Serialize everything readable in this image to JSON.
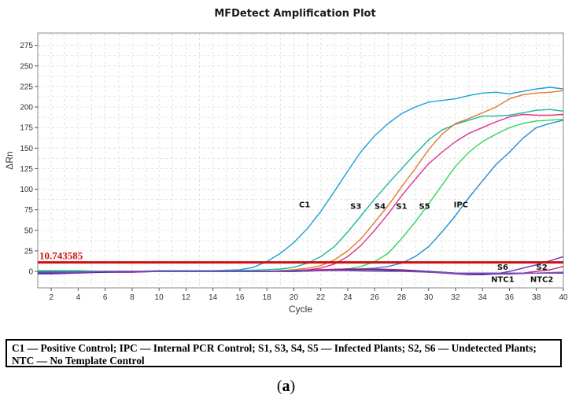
{
  "chart_data": {
    "type": "line",
    "title": "MFDetect Amplification Plot",
    "xlabel": "Cycle",
    "ylabel": "ΔRn",
    "xlim": [
      1,
      40
    ],
    "ylim": [
      -20,
      290
    ],
    "xticks": [
      2,
      4,
      6,
      8,
      10,
      12,
      14,
      16,
      18,
      20,
      22,
      24,
      26,
      28,
      30,
      32,
      34,
      36,
      38,
      40
    ],
    "yticks": [
      0,
      25,
      50,
      75,
      100,
      125,
      150,
      175,
      200,
      225,
      250,
      275
    ],
    "grid": true,
    "threshold": {
      "label": "10.743585",
      "value": 11,
      "color": "#cc1111"
    },
    "series": [
      {
        "name": "C1",
        "color": "#1aa0d8",
        "x": [
          1,
          2,
          4,
          6,
          8,
          10,
          12,
          14,
          16,
          17,
          18,
          19,
          20,
          21,
          22,
          23,
          24,
          25,
          26,
          27,
          28,
          29,
          30,
          31,
          32,
          33,
          34,
          35,
          36,
          37,
          38,
          39,
          40
        ],
        "y": [
          0,
          0,
          0,
          0,
          0,
          1,
          1,
          1,
          2,
          5,
          12,
          22,
          35,
          52,
          73,
          97,
          122,
          146,
          165,
          180,
          192,
          200,
          206,
          208,
          210,
          214,
          217,
          218,
          216,
          219,
          222,
          224,
          222
        ]
      },
      {
        "name": "S3",
        "color": "#1ab89a",
        "x": [
          1,
          2,
          4,
          6,
          8,
          10,
          12,
          14,
          16,
          18,
          19,
          20,
          21,
          22,
          23,
          24,
          25,
          26,
          27,
          28,
          29,
          30,
          31,
          32,
          33,
          34,
          35,
          36,
          37,
          38,
          39,
          40
        ],
        "y": [
          -1,
          -1,
          0,
          0,
          0,
          0,
          0,
          0,
          1,
          2,
          3,
          5,
          10,
          18,
          30,
          48,
          68,
          88,
          107,
          125,
          143,
          160,
          172,
          179,
          184,
          189,
          189,
          190,
          193,
          196,
          197,
          195
        ]
      },
      {
        "name": "S4",
        "color": "#e07a2a",
        "x": [
          1,
          2,
          4,
          6,
          8,
          10,
          12,
          14,
          16,
          18,
          20,
          21,
          22,
          23,
          24,
          25,
          26,
          27,
          28,
          29,
          30,
          31,
          32,
          33,
          34,
          35,
          36,
          37,
          38,
          39,
          40
        ],
        "y": [
          0,
          0,
          0,
          0,
          0,
          0,
          0,
          0,
          0,
          0,
          2,
          4,
          7,
          14,
          25,
          40,
          60,
          80,
          103,
          125,
          148,
          167,
          180,
          186,
          193,
          200,
          210,
          215,
          217,
          218,
          220
        ]
      },
      {
        "name": "S1",
        "color": "#e0308a",
        "x": [
          1,
          2,
          4,
          6,
          8,
          10,
          12,
          14,
          16,
          18,
          20,
          21,
          22,
          23,
          24,
          25,
          26,
          27,
          28,
          29,
          30,
          31,
          32,
          33,
          34,
          35,
          36,
          37,
          38,
          39,
          40
        ],
        "y": [
          -2,
          -2,
          -1,
          -1,
          -1,
          0,
          0,
          0,
          0,
          0,
          1,
          2,
          4,
          9,
          18,
          32,
          50,
          70,
          92,
          112,
          131,
          145,
          158,
          168,
          175,
          182,
          188,
          191,
          190,
          190,
          191
        ]
      },
      {
        "name": "S5",
        "color": "#2ed65a",
        "x": [
          1,
          2,
          4,
          6,
          8,
          10,
          12,
          14,
          16,
          18,
          20,
          22,
          24,
          25,
          26,
          27,
          28,
          29,
          30,
          31,
          32,
          33,
          34,
          35,
          36,
          37,
          38,
          39,
          40
        ],
        "y": [
          1,
          1,
          1,
          0,
          0,
          0,
          0,
          0,
          0,
          0,
          0,
          1,
          3,
          6,
          12,
          22,
          40,
          60,
          82,
          105,
          128,
          145,
          158,
          167,
          175,
          180,
          183,
          184,
          185
        ]
      },
      {
        "name": "IPC",
        "color": "#1f8ed0",
        "x": [
          1,
          2,
          4,
          6,
          8,
          10,
          12,
          14,
          16,
          18,
          20,
          22,
          24,
          26,
          27,
          28,
          29,
          30,
          31,
          32,
          33,
          34,
          35,
          36,
          37,
          38,
          39,
          40
        ],
        "y": [
          0,
          0,
          0,
          0,
          0,
          0,
          0,
          0,
          0,
          0,
          0,
          1,
          2,
          4,
          6,
          10,
          18,
          30,
          48,
          68,
          90,
          110,
          130,
          145,
          162,
          175,
          180,
          184
        ]
      },
      {
        "name": "S6",
        "color": "#7030b8",
        "x": [
          1,
          2,
          4,
          6,
          8,
          10,
          12,
          14,
          16,
          18,
          20,
          22,
          24,
          26,
          28,
          30,
          32,
          33,
          34,
          35,
          36,
          37,
          38,
          39,
          40
        ],
        "y": [
          -3,
          -3,
          -2,
          -1,
          -1,
          0,
          0,
          0,
          0,
          0,
          1,
          2,
          3,
          2,
          1,
          -1,
          -3,
          -4,
          -4,
          -3,
          0,
          4,
          8,
          13,
          18
        ]
      },
      {
        "name": "S2",
        "color": "#c0207a",
        "x": [
          1,
          2,
          4,
          6,
          8,
          10,
          12,
          14,
          16,
          18,
          20,
          22,
          24,
          26,
          28,
          30,
          32,
          34,
          35,
          36,
          37,
          38,
          39,
          40
        ],
        "y": [
          -1,
          -1,
          -1,
          0,
          0,
          0,
          0,
          0,
          0,
          0,
          1,
          2,
          3,
          3,
          2,
          0,
          -2,
          -3,
          -3,
          -3,
          -2,
          0,
          2,
          6
        ]
      },
      {
        "name": "NTC1",
        "color": "#2a3a9a",
        "x": [
          1,
          2,
          4,
          6,
          8,
          10,
          12,
          14,
          16,
          18,
          20,
          22,
          24,
          26,
          28,
          30,
          32,
          34,
          36,
          38,
          40
        ],
        "y": [
          -2,
          -2,
          -1,
          -1,
          0,
          0,
          0,
          0,
          0,
          0,
          0,
          1,
          2,
          2,
          1,
          0,
          -2,
          -3,
          -3,
          -2,
          -2
        ]
      },
      {
        "name": "NTC2",
        "color": "#8a4ab8",
        "x": [
          1,
          2,
          4,
          6,
          8,
          10,
          12,
          14,
          16,
          18,
          20,
          22,
          24,
          26,
          28,
          30,
          32,
          34,
          36,
          38,
          40
        ],
        "y": [
          -1,
          -1,
          -1,
          0,
          0,
          0,
          0,
          0,
          0,
          0,
          1,
          1,
          1,
          0,
          0,
          -1,
          -2,
          -2,
          -2,
          -2,
          -1
        ]
      }
    ],
    "annotations": [
      {
        "text": "C1",
        "x": 20.8,
        "y": 78
      },
      {
        "text": "S3",
        "x": 24.6,
        "y": 76
      },
      {
        "text": "S4",
        "x": 26.4,
        "y": 76
      },
      {
        "text": "S1",
        "x": 28.0,
        "y": 76
      },
      {
        "text": "S5",
        "x": 29.7,
        "y": 76
      },
      {
        "text": "IPC",
        "x": 32.4,
        "y": 78
      },
      {
        "text": "S6",
        "x": 35.5,
        "y": 2
      },
      {
        "text": "S2",
        "x": 38.4,
        "y": 2
      },
      {
        "text": "NTC1",
        "x": 35.5,
        "y": -13
      },
      {
        "text": "NTC2",
        "x": 38.4,
        "y": -13
      }
    ]
  },
  "legend_text": "C1 — Positive Control; IPC — Internal PCR Control; S1, S3, S4, S5 — Infected Plants; S2, S6 — Undetected Plants; NTC — No Template Control",
  "caption": {
    "open": "(",
    "letter": "a",
    "close": ")"
  }
}
